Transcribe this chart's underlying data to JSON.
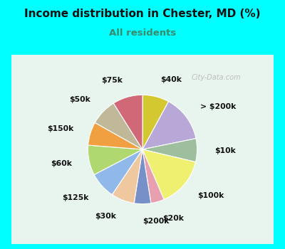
{
  "title": "Income distribution in Chester, MD (%)",
  "subtitle": "All residents",
  "title_color": "#111111",
  "subtitle_color": "#3a8a6e",
  "bg_cyan": "#00ffff",
  "bg_chart": "#dff0e8",
  "watermark": "City-Data.com",
  "labels": [
    "$40k",
    "> $200k",
    "$10k",
    "$100k",
    "$20k",
    "$200k",
    "$30k",
    "$125k",
    "$60k",
    "$150k",
    "$50k",
    "$75k"
  ],
  "values": [
    8,
    14,
    7,
    15,
    4,
    5,
    7,
    8,
    9,
    7,
    8,
    9
  ],
  "colors": [
    "#d4c830",
    "#b8a8d8",
    "#9dbf9d",
    "#f0f070",
    "#e8a0b0",
    "#7890c8",
    "#f0c8a0",
    "#90b8e8",
    "#b0d870",
    "#f0a040",
    "#c0b898",
    "#d06878"
  ],
  "startangle": 90,
  "label_fontsize": 7.8
}
